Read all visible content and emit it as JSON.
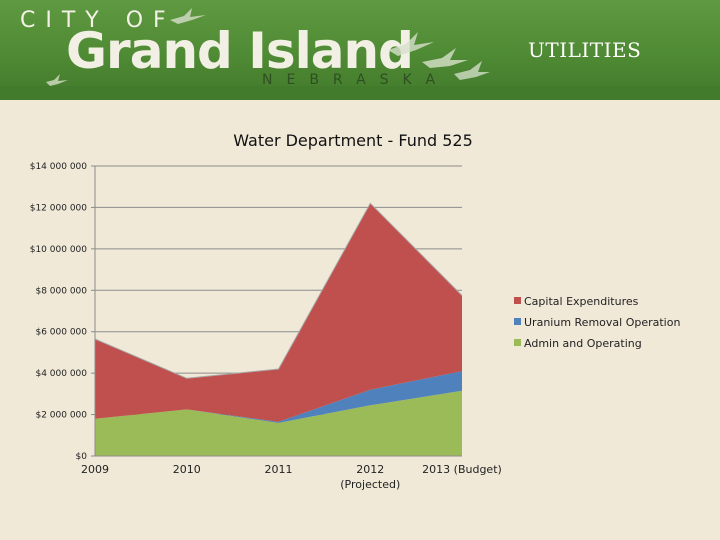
{
  "header": {
    "city_of": "CITY OF",
    "grand_island": "Grand Island",
    "nebraska": "NEBRASKA",
    "section_title": "UTILITIES",
    "accent_color": "#4f8a34",
    "bird_icons": [
      "crane-icon",
      "crane-icon",
      "crane-icon",
      "crane-icon",
      "crane-icon"
    ]
  },
  "chart_data": {
    "type": "area",
    "stacked": true,
    "title": "Water Department - Fund 525",
    "categories": [
      "2009",
      "2010",
      "2011",
      "2012 (Projected)",
      "2013 (Budget)"
    ],
    "category_labels": [
      [
        "2009"
      ],
      [
        "2010"
      ],
      [
        "2011"
      ],
      [
        "2012",
        "(Projected)"
      ],
      [
        "2013 (Budget)"
      ]
    ],
    "series": [
      {
        "name": "Admin and Operating",
        "color": "#9bbb59",
        "values": [
          1800000,
          2250000,
          1600000,
          2450000,
          3150000
        ]
      },
      {
        "name": "Uranium Removal Operation",
        "color": "#4f81bd",
        "values": [
          0,
          0,
          50000,
          750000,
          950000
        ]
      },
      {
        "name": "Capital Expenditures",
        "color": "#c0504d",
        "values": [
          3850000,
          1500000,
          2550000,
          9000000,
          3650000
        ]
      }
    ],
    "legend_order": [
      "Capital Expenditures",
      "Uranium Removal Operation",
      "Admin and Operating"
    ],
    "legend_position": "right",
    "ylim": [
      0,
      14000000
    ],
    "ytick_values": [
      0,
      2000000,
      4000000,
      6000000,
      8000000,
      10000000,
      12000000,
      14000000
    ],
    "ytick_labels": [
      "$0",
      "$2 000 000",
      "$4 000 000",
      "$6 000 000",
      "$8 000 000",
      "$10 000 000",
      "$12 000 000",
      "$14 000 000"
    ],
    "grid": true
  }
}
